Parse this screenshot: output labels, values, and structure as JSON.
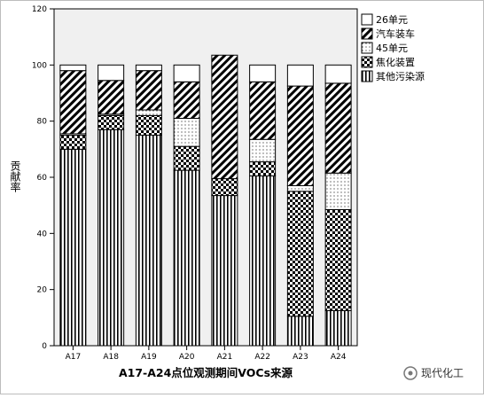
{
  "chart_data": {
    "type": "bar",
    "stacked": true,
    "xlabel": "A17-A24点位观测期间VOCs来源",
    "ylabel": "贡献率",
    "ylim": [
      0,
      120
    ],
    "yticks": [
      0,
      20,
      40,
      60,
      80,
      100,
      120
    ],
    "categories": [
      "A17",
      "A18",
      "A19",
      "A20",
      "A21",
      "A22",
      "A23",
      "A24"
    ],
    "series": [
      {
        "name": "其他污染源",
        "pattern": "vertical",
        "values": [
          70,
          77,
          75,
          62.5,
          53.5,
          60.5,
          10.5,
          12.5
        ]
      },
      {
        "name": "焦化装置",
        "pattern": "checker",
        "values": [
          5,
          5,
          7,
          8.5,
          6,
          5,
          44.5,
          36
        ]
      },
      {
        "name": "45单元",
        "pattern": "dots",
        "values": [
          0.5,
          0.5,
          2,
          10,
          0,
          8,
          2,
          13
        ]
      },
      {
        "name": "汽车装车",
        "pattern": "diagonal",
        "values": [
          22.5,
          12,
          14,
          13,
          44,
          20.5,
          35.5,
          32
        ]
      },
      {
        "name": "26单元",
        "pattern": "blank",
        "values": [
          2,
          5.5,
          2,
          6,
          0,
          6,
          7.5,
          6.5
        ]
      }
    ],
    "legend_position": "top-right",
    "legend_order": [
      "26单元",
      "汽车装车",
      "45单元",
      "焦化装置",
      "其他污染源"
    ],
    "grid": false,
    "plot_background": "#f0f0f0"
  },
  "watermark": {
    "text": "现代化工"
  }
}
